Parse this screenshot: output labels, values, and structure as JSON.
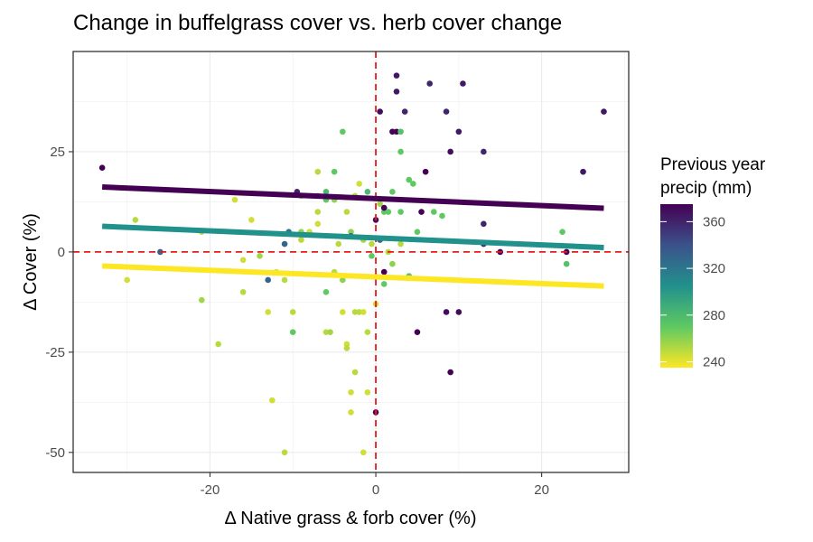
{
  "chart_data": {
    "type": "scatter",
    "title": "Change in buffelgrass cover vs. herb cover change",
    "xlabel": "Δ Native grass & forb cover (%)",
    "ylabel": "Δ Cover (%)",
    "xlim": [
      -36.5,
      30.5
    ],
    "ylim": [
      -55,
      50
    ],
    "x_ticks": [
      -20,
      0,
      20
    ],
    "y_ticks": [
      -50,
      -25,
      0,
      25
    ],
    "x_tick_labels": [
      "-20",
      "0",
      "20"
    ],
    "y_tick_labels": [
      "-50",
      "-25",
      "0",
      "25"
    ],
    "grid": true,
    "reference_lines": {
      "x": 0,
      "y": 0,
      "color": "#e41a1c",
      "style": "dashed"
    },
    "legend": {
      "title_lines": [
        "Previous year",
        "precip (mm)"
      ],
      "range": [
        235,
        375
      ],
      "ticks": [
        240,
        280,
        320,
        360
      ],
      "tick_labels": [
        "240",
        "280",
        "320",
        "360"
      ],
      "placement": "right"
    },
    "color_stops": [
      {
        "t": 0.0,
        "color": "#fde725"
      },
      {
        "t": 0.25,
        "color": "#5ec962"
      },
      {
        "t": 0.5,
        "color": "#21918c"
      },
      {
        "t": 0.75,
        "color": "#3b528b"
      },
      {
        "t": 1.0,
        "color": "#440154"
      }
    ],
    "fit_lines": [
      {
        "precip": 370,
        "color": "#440154",
        "x": [
          -33,
          27.5
        ],
        "y": [
          16.2,
          10.9
        ]
      },
      {
        "precip": 300,
        "color": "#21918c",
        "x": [
          -33,
          27.5
        ],
        "y": [
          6.4,
          1.1
        ]
      },
      {
        "precip": 240,
        "color": "#fde725",
        "x": [
          -33,
          27.5
        ],
        "y": [
          -3.5,
          -8.5
        ]
      }
    ],
    "points": [
      {
        "x": -33,
        "y": 21,
        "precip": 375
      },
      {
        "x": -30,
        "y": -7,
        "precip": 245
      },
      {
        "x": -29,
        "y": 8,
        "precip": 250
      },
      {
        "x": -26,
        "y": 0,
        "precip": 330
      },
      {
        "x": -21,
        "y": -12,
        "precip": 255
      },
      {
        "x": -21,
        "y": 5,
        "precip": 250
      },
      {
        "x": -19,
        "y": -23,
        "precip": 250
      },
      {
        "x": -17,
        "y": 13,
        "precip": 245
      },
      {
        "x": -16,
        "y": -2,
        "precip": 245
      },
      {
        "x": -16,
        "y": -10,
        "precip": 250
      },
      {
        "x": -15,
        "y": 8,
        "precip": 245
      },
      {
        "x": -14,
        "y": -1,
        "precip": 255
      },
      {
        "x": -13,
        "y": -7,
        "precip": 330
      },
      {
        "x": -13,
        "y": -15,
        "precip": 245
      },
      {
        "x": -12.5,
        "y": -37,
        "precip": 245
      },
      {
        "x": -12,
        "y": -5,
        "precip": 245
      },
      {
        "x": -11,
        "y": -7,
        "precip": 250
      },
      {
        "x": -11,
        "y": 2,
        "precip": 330
      },
      {
        "x": -11,
        "y": -50,
        "precip": 250
      },
      {
        "x": -10.5,
        "y": 5,
        "precip": 320
      },
      {
        "x": -10,
        "y": -20,
        "precip": 270
      },
      {
        "x": -10,
        "y": -15,
        "precip": 250
      },
      {
        "x": -9.5,
        "y": 15,
        "precip": 360
      },
      {
        "x": -9,
        "y": 5,
        "precip": 260
      },
      {
        "x": -9,
        "y": 3,
        "precip": 250
      },
      {
        "x": -9,
        "y": 14,
        "precip": 255
      },
      {
        "x": -8,
        "y": 5,
        "precip": 245
      },
      {
        "x": -7,
        "y": 20,
        "precip": 250
      },
      {
        "x": -7,
        "y": 14,
        "precip": 255
      },
      {
        "x": -7,
        "y": 10,
        "precip": 250
      },
      {
        "x": -7,
        "y": 7,
        "precip": 245
      },
      {
        "x": -6,
        "y": -10,
        "precip": 270
      },
      {
        "x": -6,
        "y": 13,
        "precip": 270
      },
      {
        "x": -6,
        "y": 15,
        "precip": 280
      },
      {
        "x": -6,
        "y": -20,
        "precip": 250
      },
      {
        "x": -5.5,
        "y": -20,
        "precip": 255
      },
      {
        "x": -5,
        "y": 20,
        "precip": 270
      },
      {
        "x": -5,
        "y": 13,
        "precip": 260
      },
      {
        "x": -5,
        "y": -5,
        "precip": 250
      },
      {
        "x": -4.5,
        "y": 2,
        "precip": 250
      },
      {
        "x": -4,
        "y": 30,
        "precip": 270
      },
      {
        "x": -4,
        "y": -7,
        "precip": 260
      },
      {
        "x": -4,
        "y": -15,
        "precip": 245
      },
      {
        "x": -3.5,
        "y": -23,
        "precip": 245
      },
      {
        "x": -3.5,
        "y": -24,
        "precip": 250
      },
      {
        "x": -3.5,
        "y": 10,
        "precip": 250
      },
      {
        "x": -3,
        "y": -35,
        "precip": 245
      },
      {
        "x": -3,
        "y": 5,
        "precip": 260
      },
      {
        "x": -3,
        "y": 4,
        "precip": 330
      },
      {
        "x": -3,
        "y": -40,
        "precip": 245
      },
      {
        "x": -2.5,
        "y": -30,
        "precip": 250
      },
      {
        "x": -2.5,
        "y": -15,
        "precip": 250
      },
      {
        "x": -2.5,
        "y": 14,
        "precip": 250
      },
      {
        "x": -2,
        "y": -15,
        "precip": 250
      },
      {
        "x": -2,
        "y": 17,
        "precip": 245
      },
      {
        "x": -1.5,
        "y": -15,
        "precip": 245
      },
      {
        "x": -1.5,
        "y": 3,
        "precip": 255
      },
      {
        "x": -1.5,
        "y": -50,
        "precip": 245
      },
      {
        "x": -1,
        "y": -20,
        "precip": 250
      },
      {
        "x": -1,
        "y": -35,
        "precip": 245
      },
      {
        "x": -1,
        "y": 15,
        "precip": 280
      },
      {
        "x": -0.5,
        "y": -1,
        "precip": 270
      },
      {
        "x": -0.5,
        "y": 2,
        "precip": 250
      },
      {
        "x": 0,
        "y": -13,
        "precip": 245
      },
      {
        "x": 0,
        "y": -40,
        "precip": 375
      },
      {
        "x": 0,
        "y": 8,
        "precip": 370
      },
      {
        "x": 0.5,
        "y": 35,
        "precip": 370
      },
      {
        "x": 0.5,
        "y": 12,
        "precip": 255
      },
      {
        "x": 0.5,
        "y": 3,
        "precip": 330
      },
      {
        "x": 1,
        "y": 10,
        "precip": 270
      },
      {
        "x": 1,
        "y": 11,
        "precip": 375
      },
      {
        "x": 1,
        "y": -5,
        "precip": 375
      },
      {
        "x": 1,
        "y": -8,
        "precip": 270
      },
      {
        "x": 1.5,
        "y": 10,
        "precip": 270
      },
      {
        "x": 1.5,
        "y": 0,
        "precip": 250
      },
      {
        "x": 2,
        "y": 30,
        "precip": 375
      },
      {
        "x": 2,
        "y": 15,
        "precip": 270
      },
      {
        "x": 2,
        "y": -3,
        "precip": 260
      },
      {
        "x": 2.5,
        "y": 44,
        "precip": 365
      },
      {
        "x": 2.5,
        "y": 40,
        "precip": 365
      },
      {
        "x": 2.5,
        "y": 30,
        "precip": 375
      },
      {
        "x": 3,
        "y": 30,
        "precip": 275
      },
      {
        "x": 3,
        "y": 25,
        "precip": 270
      },
      {
        "x": 3,
        "y": 10,
        "precip": 270
      },
      {
        "x": 3,
        "y": 2,
        "precip": 250
      },
      {
        "x": 3.5,
        "y": 35,
        "precip": 360
      },
      {
        "x": 4,
        "y": 18,
        "precip": 270
      },
      {
        "x": 4,
        "y": -6,
        "precip": 270
      },
      {
        "x": 4.5,
        "y": 17,
        "precip": 270
      },
      {
        "x": 5,
        "y": 5,
        "precip": 270
      },
      {
        "x": 5,
        "y": -20,
        "precip": 375
      },
      {
        "x": 5.5,
        "y": 10,
        "precip": 375
      },
      {
        "x": 6,
        "y": 20,
        "precip": 375
      },
      {
        "x": 6.5,
        "y": 42,
        "precip": 360
      },
      {
        "x": 7,
        "y": 10,
        "precip": 270
      },
      {
        "x": 8,
        "y": 9,
        "precip": 270
      },
      {
        "x": 8.5,
        "y": 35,
        "precip": 360
      },
      {
        "x": 8.5,
        "y": -15,
        "precip": 370
      },
      {
        "x": 9,
        "y": 25,
        "precip": 370
      },
      {
        "x": 9,
        "y": -30,
        "precip": 375
      },
      {
        "x": 10,
        "y": 30,
        "precip": 365
      },
      {
        "x": 10,
        "y": -15,
        "precip": 370
      },
      {
        "x": 10.5,
        "y": 42,
        "precip": 365
      },
      {
        "x": 13,
        "y": 25,
        "precip": 360
      },
      {
        "x": 13,
        "y": 7,
        "precip": 360
      },
      {
        "x": 13,
        "y": 2,
        "precip": 360
      },
      {
        "x": 15,
        "y": 0,
        "precip": 375
      },
      {
        "x": 22.5,
        "y": 5,
        "precip": 270
      },
      {
        "x": 23,
        "y": 0,
        "precip": 375
      },
      {
        "x": 23,
        "y": -3,
        "precip": 275
      },
      {
        "x": 25,
        "y": 20,
        "precip": 365
      },
      {
        "x": 27.5,
        "y": 35,
        "precip": 365
      }
    ]
  }
}
